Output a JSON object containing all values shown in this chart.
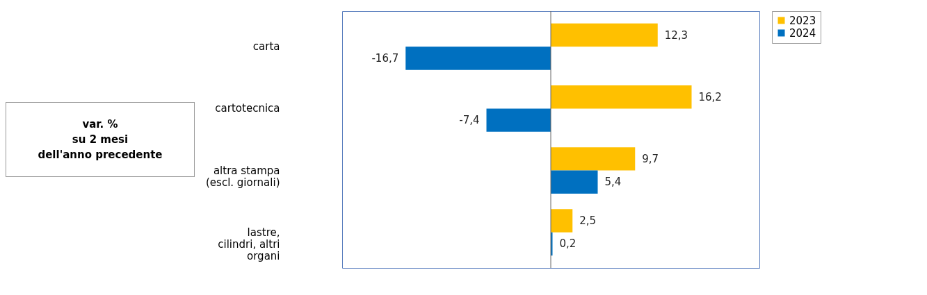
{
  "chart_data": {
    "type": "bar",
    "orientation": "horizontal",
    "categories": [
      "carta",
      "cartotecnica",
      "altra stampa (escl. giornali)",
      "lastre, cilindri, altri organi"
    ],
    "series": [
      {
        "name": "2023",
        "color": "#ffc000",
        "values": [
          12.3,
          16.2,
          9.7,
          2.5
        ],
        "value_labels": [
          "12,3",
          "16,2",
          "9,7",
          "2,5"
        ]
      },
      {
        "name": "2024",
        "color": "#0070c0",
        "values": [
          -16.7,
          -7.4,
          5.4,
          0.2
        ],
        "value_labels": [
          "-16,7",
          "-7,4",
          "5,4",
          "0,2"
        ]
      }
    ],
    "xlim": [
      -24,
      24
    ],
    "tick_labels": "y",
    "legend": "right",
    "annotations": [
      "var. %\nsu 2 mesi\ndell'anno precedente"
    ]
  }
}
